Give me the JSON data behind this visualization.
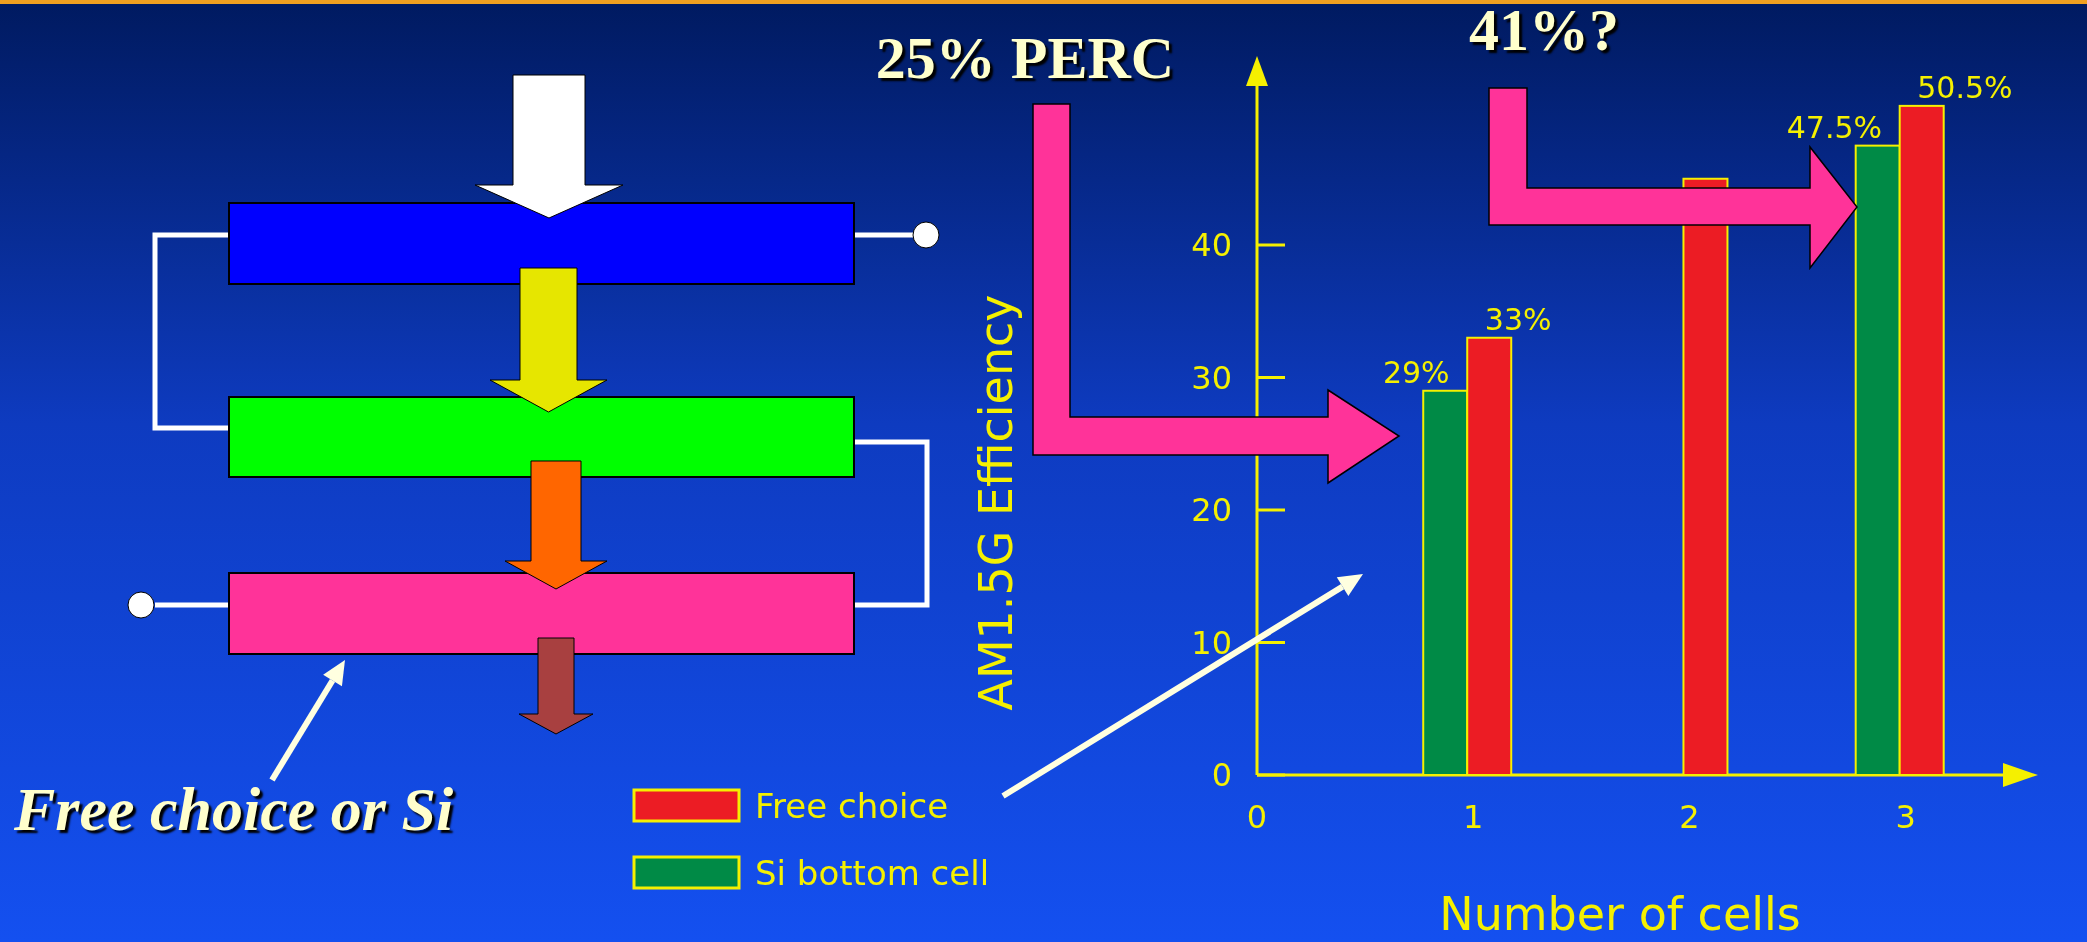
{
  "chart_data": {
    "type": "bar",
    "xlabel": "Number of cells",
    "ylabel": "AM1.5G Efficiency",
    "annotations": [
      "25% PERC",
      "41%?",
      "Free choice or Si"
    ],
    "x": [
      1,
      2,
      3
    ],
    "xlim": [
      0,
      3.45
    ],
    "xticks": [
      0,
      1,
      2,
      3
    ],
    "ylim": [
      0,
      52
    ],
    "yticks": [
      0,
      10,
      20,
      30,
      40
    ],
    "legend": "bottom left",
    "grid": false,
    "series": [
      {
        "name": "Si bottom cell",
        "color": "#008a46",
        "values": [
          29,
          null,
          47.5
        ],
        "value_labels": [
          "29%",
          null,
          "47.5%"
        ]
      },
      {
        "name": "Free choice",
        "color": "#ec1c24",
        "values": [
          33,
          45,
          50.5
        ],
        "value_labels": [
          "33%",
          null,
          "50.5%"
        ]
      }
    ]
  }
}
